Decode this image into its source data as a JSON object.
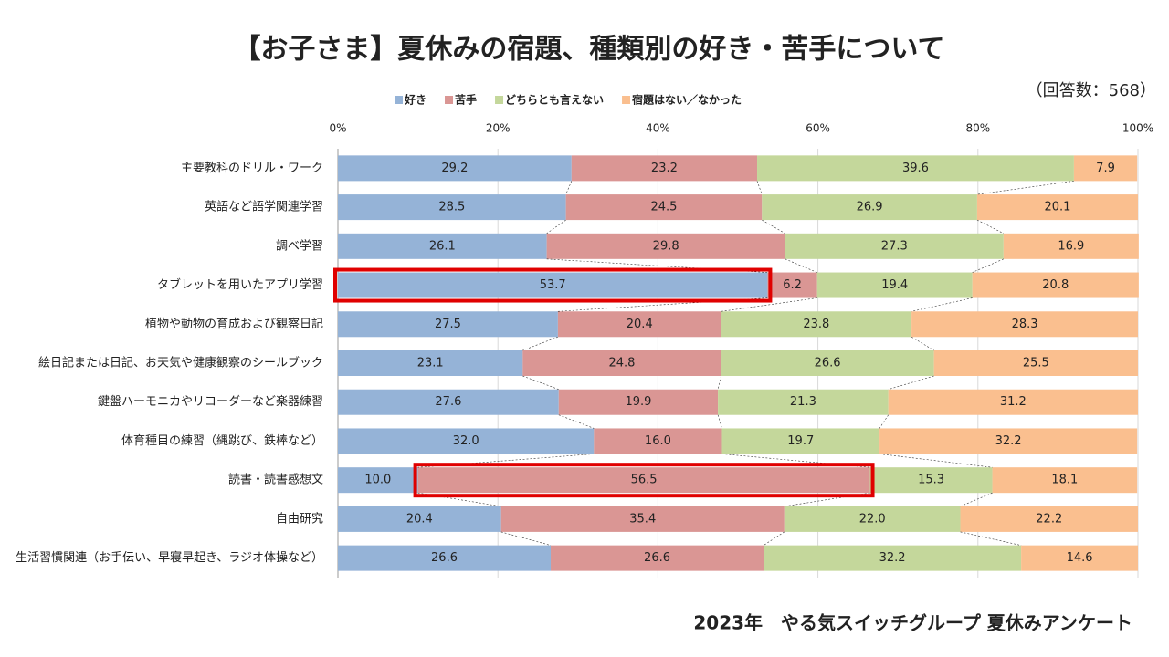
{
  "chart_data": {
    "type": "stacked-bar-horizontal",
    "title": "【お子さま】夏休みの宿題、種類別の好き・苦手について",
    "subtitle": "（回答数：568）",
    "footer": "2023年　やる気スイッチグループ 夏休みアンケート",
    "categories": [
      "主要教科のドリル・ワーク",
      "英語など語学関連学習",
      "調べ学習",
      "タブレットを用いたアプリ学習",
      "植物や動物の育成および観察日記",
      "絵日記または日記、お天気や健康観察のシールブック",
      "鍵盤ハーモニカやリコーダーなど楽器練習",
      "体育種目の練習（縄跳び、鉄棒など）",
      "読書・読書感想文",
      "自由研究",
      "生活習慣関連（お手伝い、早寝早起き、ラジオ体操など）"
    ],
    "series": [
      {
        "name": "好き",
        "color": "#95b3d7",
        "values": [
          29.2,
          28.5,
          26.1,
          53.7,
          27.5,
          23.1,
          27.6,
          32.0,
          10.0,
          20.4,
          26.6
        ],
        "value_labels": [
          "29.2",
          "28.5",
          "26.1",
          "53.7",
          "27.5",
          "23.1",
          "27.6",
          "32.0",
          "10.0",
          "20.4",
          "26.6"
        ]
      },
      {
        "name": "苦手",
        "color": "#da9694",
        "values": [
          23.2,
          24.5,
          29.8,
          6.2,
          20.4,
          24.8,
          19.9,
          16.0,
          56.5,
          35.4,
          26.6
        ],
        "value_labels": [
          "23.2",
          "24.5",
          "29.8",
          "6.2",
          "20.4",
          "24.8",
          "19.9",
          "16.0",
          "56.5",
          "35.4",
          "26.6"
        ]
      },
      {
        "name": "どちらとも言えない",
        "color": "#c4d79b",
        "values": [
          39.6,
          26.9,
          27.3,
          19.4,
          23.8,
          26.6,
          21.3,
          19.7,
          15.3,
          22.0,
          32.2
        ],
        "value_labels": [
          "39.6",
          "26.9",
          "27.3",
          "19.4",
          "23.8",
          "26.6",
          "21.3",
          "19.7",
          "15.3",
          "22.0",
          "32.2"
        ]
      },
      {
        "name": "宿題はない／なかった",
        "color": "#fabf8f",
        "values": [
          7.9,
          20.1,
          16.9,
          20.8,
          28.3,
          25.5,
          31.2,
          32.2,
          18.1,
          22.2,
          14.6
        ],
        "value_labels": [
          "7.9",
          "20.1",
          "16.9",
          "20.8",
          "28.3",
          "25.5",
          "31.2",
          "32.2",
          "18.1",
          "22.2",
          "14.6"
        ]
      }
    ],
    "xlim": [
      0,
      100
    ],
    "xticks": [
      {
        "value": 0,
        "label": "0%"
      },
      {
        "value": 20,
        "label": "20%"
      },
      {
        "value": 40,
        "label": "40%"
      },
      {
        "value": 60,
        "label": "60%"
      },
      {
        "value": 80,
        "label": "80%"
      },
      {
        "value": 100,
        "label": "100%"
      }
    ],
    "grid": true,
    "highlights": [
      {
        "series": 0,
        "index": 3
      },
      {
        "series": 1,
        "index": 8
      }
    ],
    "highlight_color": "#e00000"
  }
}
